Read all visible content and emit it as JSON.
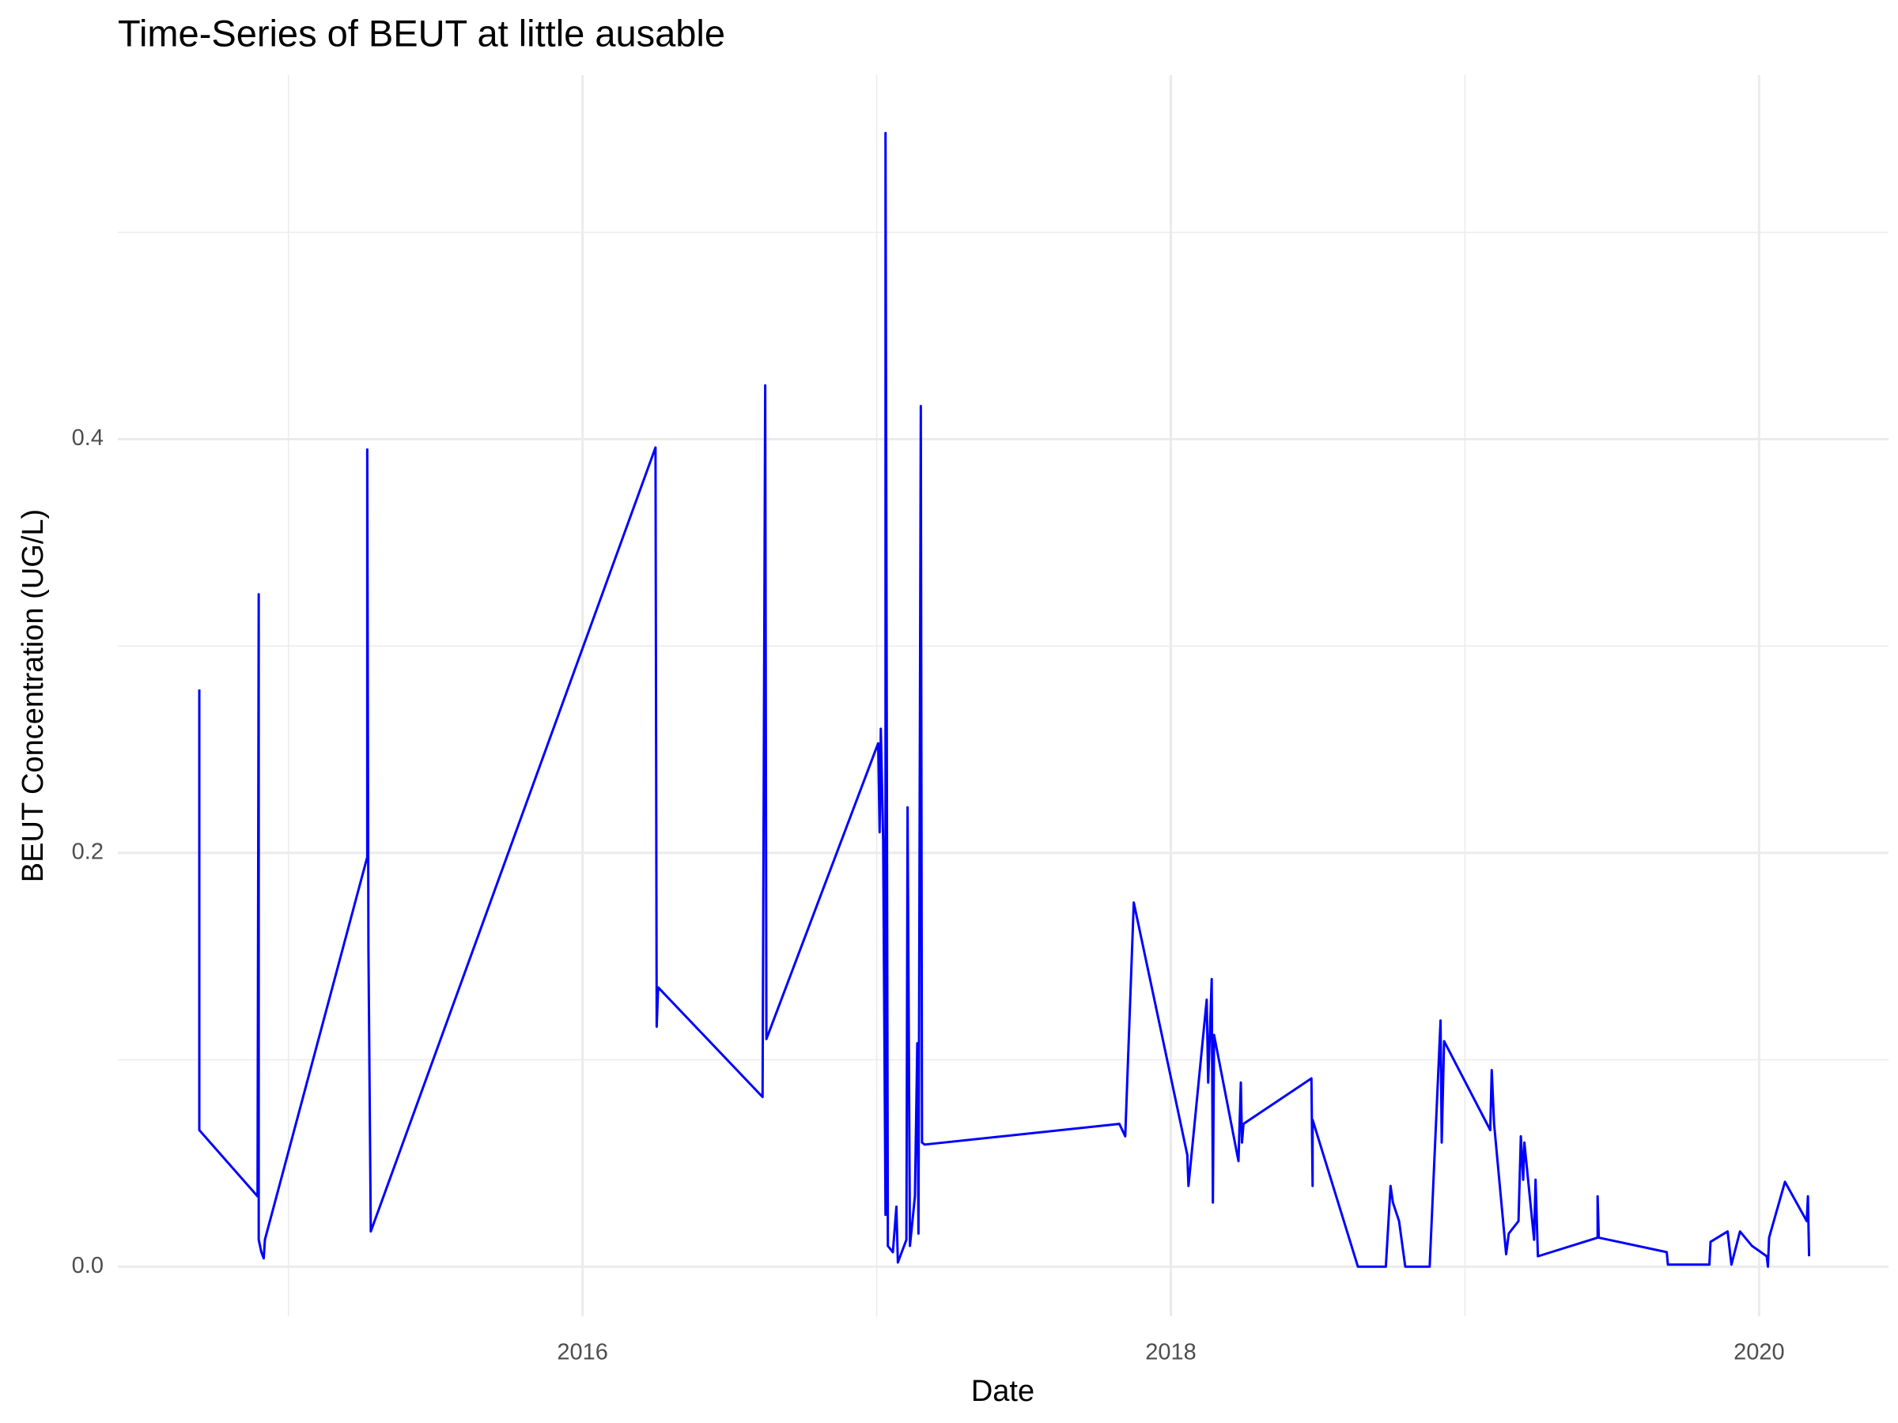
{
  "chart_data": {
    "type": "line",
    "title": "Time-Series of BEUT at little ausable",
    "x_label": "Date",
    "y_label": "BEUT Concentration (UG/L)",
    "x": [
      2014.697,
      2014.697,
      2014.895,
      2014.899,
      2014.899,
      2014.908,
      2014.916,
      2014.92,
      2015.268,
      2015.268,
      2015.272,
      2015.28,
      2016.248,
      2016.252,
      2016.257,
      2016.612,
      2016.621,
      2016.625,
      2017.005,
      2017.01,
      2017.014,
      2017.022,
      2017.03,
      2017.03,
      2017.038,
      2017.055,
      2017.067,
      2017.072,
      2017.101,
      2017.105,
      2017.113,
      2017.13,
      2017.138,
      2017.142,
      2017.15,
      2017.154,
      2017.163,
      2017.825,
      2017.845,
      2017.874,
      2018.056,
      2018.06,
      2018.122,
      2018.127,
      2018.139,
      2018.143,
      2018.147,
      2018.23,
      2018.238,
      2018.242,
      2018.247,
      2018.478,
      2018.482,
      2018.482,
      2018.636,
      2018.731,
      2018.747,
      2018.755,
      2018.776,
      2018.797,
      2018.88,
      2018.917,
      2018.921,
      2018.929,
      2019.086,
      2019.091,
      2019.099,
      2019.14,
      2019.149,
      2019.182,
      2019.19,
      2019.198,
      2019.202,
      2019.235,
      2019.24,
      2019.248,
      2019.451,
      2019.451,
      2019.455,
      2019.686,
      2019.69,
      2019.831,
      2019.835,
      2019.893,
      2019.906,
      2019.935,
      2019.976,
      2020.026,
      2020.03,
      2020.034,
      2020.088,
      2020.162,
      2020.166,
      2020.17
    ],
    "series": [
      {
        "name": "BEUT",
        "color": "#0000ff",
        "values": [
          0.279,
          0.066,
          0.034,
          0.325,
          0.013,
          0.007,
          0.004,
          0.013,
          0.198,
          0.395,
          0.154,
          0.017,
          0.396,
          0.116,
          0.135,
          0.082,
          0.426,
          0.11,
          0.253,
          0.21,
          0.26,
          0.206,
          0.025,
          0.548,
          0.01,
          0.007,
          0.029,
          0.002,
          0.013,
          0.222,
          0.01,
          0.034,
          0.108,
          0.016,
          0.416,
          0.06,
          0.059,
          0.069,
          0.063,
          0.176,
          0.054,
          0.039,
          0.129,
          0.089,
          0.139,
          0.031,
          0.112,
          0.051,
          0.089,
          0.06,
          0.069,
          0.091,
          0.039,
          0.071,
          0.0,
          0.0,
          0.039,
          0.031,
          0.022,
          0.0,
          0.0,
          0.119,
          0.06,
          0.109,
          0.066,
          0.095,
          0.069,
          0.006,
          0.016,
          0.022,
          0.063,
          0.042,
          0.06,
          0.013,
          0.042,
          0.005,
          0.014,
          0.034,
          0.014,
          0.007,
          0.001,
          0.001,
          0.012,
          0.017,
          0.001,
          0.017,
          0.01,
          0.005,
          0.0,
          0.014,
          0.041,
          0.022,
          0.034,
          0.005
        ]
      }
    ],
    "xlim": [
      2014.42,
      2020.44
    ],
    "ylim": [
      -0.024,
      0.576
    ],
    "xticks": [
      2016,
      2018,
      2020
    ],
    "yticks": [
      {
        "value": 0,
        "label": "0.0"
      },
      0.2,
      0.4
    ],
    "xminorticks": [
      2015,
      2017,
      2019
    ],
    "yminorticks": [
      0.1,
      0.3,
      0.5
    ],
    "grid": true
  }
}
